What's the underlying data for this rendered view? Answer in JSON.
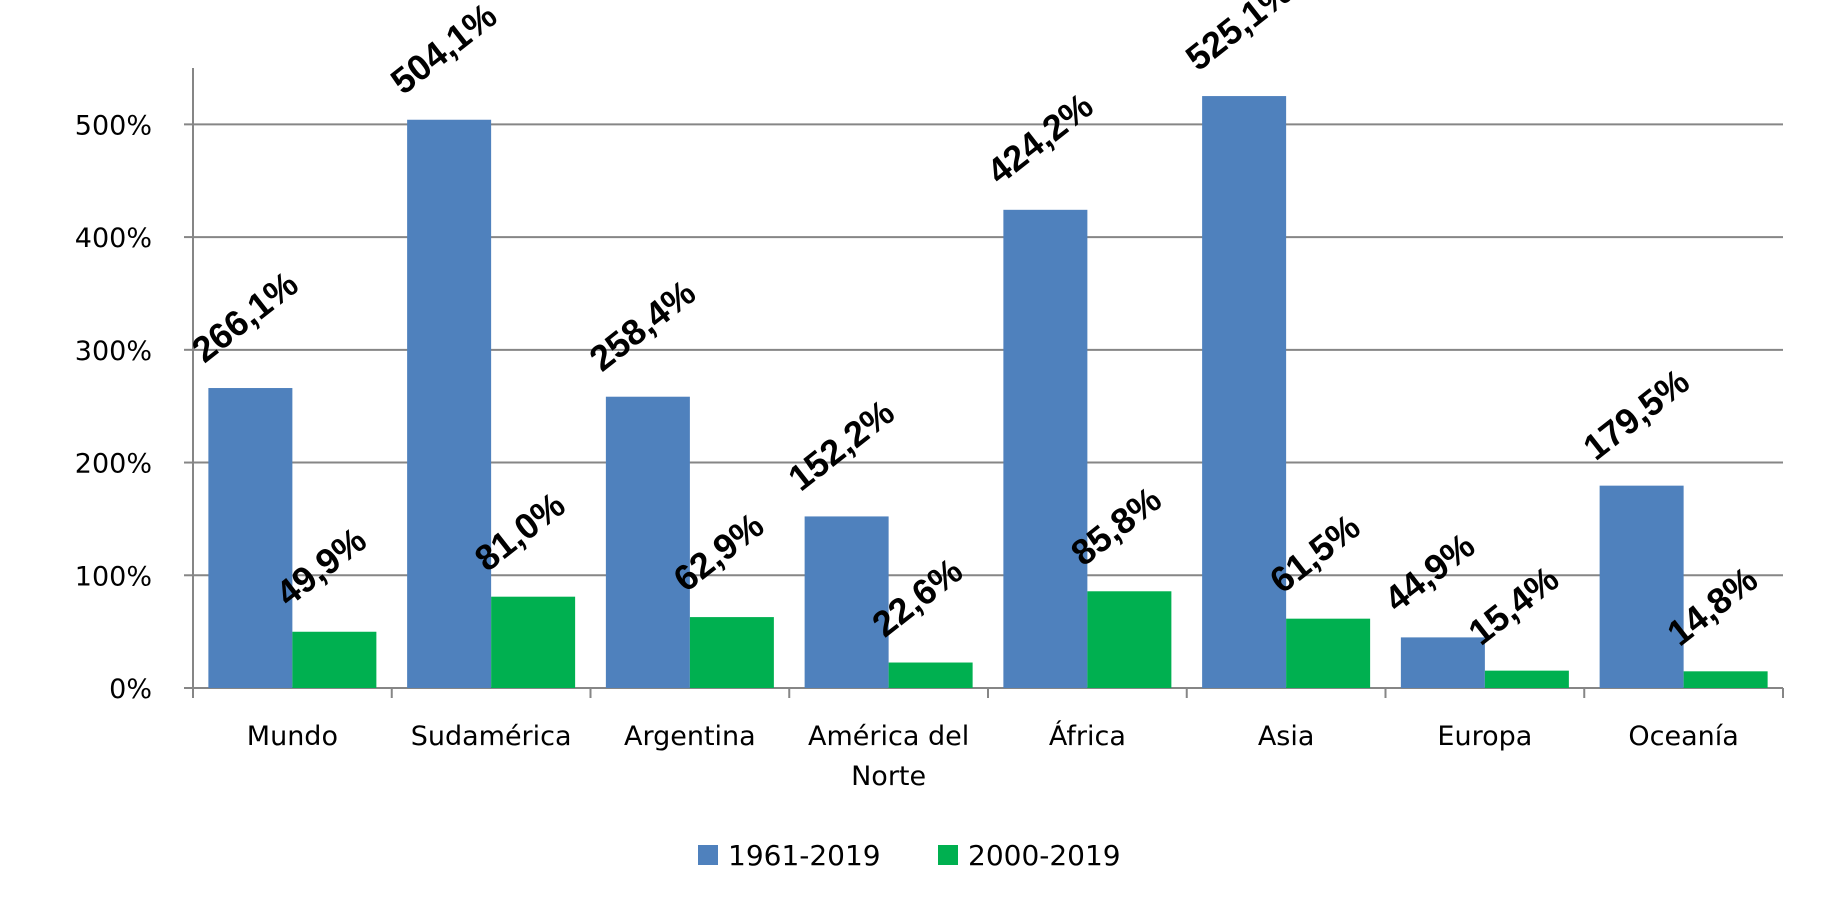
{
  "chart_data": {
    "type": "bar",
    "title": "",
    "xlabel": "",
    "ylabel": "",
    "ylim": [
      0,
      550
    ],
    "yticks": [
      0,
      100,
      200,
      300,
      400,
      500
    ],
    "ytick_labels": [
      "0%",
      "100%",
      "200%",
      "300%",
      "400%",
      "500%"
    ],
    "grid": true,
    "legend_position": "bottom",
    "categories": [
      "Mundo",
      "Sudamérica",
      "Argentina",
      "América del Norte",
      "África",
      "Asia",
      "Europa",
      "Oceanía"
    ],
    "category_lines": [
      [
        "Mundo"
      ],
      [
        "Sudamérica"
      ],
      [
        "Argentina"
      ],
      [
        "América del",
        "Norte"
      ],
      [
        "África"
      ],
      [
        "Asia"
      ],
      [
        "Europa"
      ],
      [
        "Oceanía"
      ]
    ],
    "series": [
      {
        "name": "1961-2019",
        "color": "#4F81BD",
        "values": [
          266.1,
          504.1,
          258.4,
          152.2,
          424.2,
          525.1,
          44.9,
          179.5
        ],
        "labels": [
          "266,1%",
          "504,1%",
          "258,4%",
          "152,2%",
          "424,2%",
          "525,1%",
          "44,9%",
          "179,5%"
        ]
      },
      {
        "name": "2000-2019",
        "color": "#00B050",
        "values": [
          49.9,
          81.0,
          62.9,
          22.6,
          85.8,
          61.5,
          15.4,
          14.8
        ],
        "labels": [
          "49,9%",
          "81,0%",
          "62,9%",
          "22,6%",
          "85,8%",
          "61,5%",
          "15,4%",
          "14,8%"
        ]
      }
    ]
  }
}
